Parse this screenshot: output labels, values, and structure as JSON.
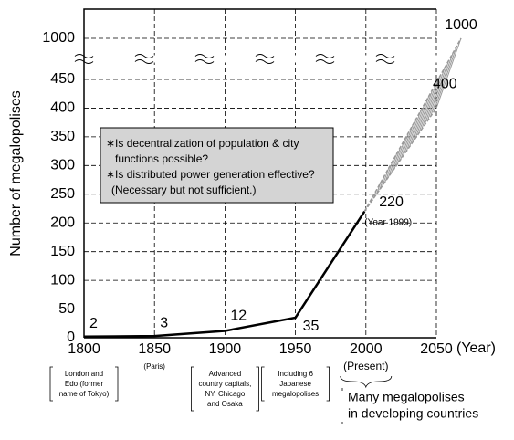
{
  "chart_data": {
    "type": "line",
    "y_label": "Number of megalopolises",
    "x_label": "(Year)",
    "x": [
      1800,
      1850,
      1900,
      1950,
      1999
    ],
    "values": [
      2,
      3,
      12,
      35,
      220
    ],
    "color": "#000000",
    "xlim": [
      1800,
      2050
    ],
    "xticks": [
      1800,
      1850,
      1900,
      1950,
      2000,
      2050
    ],
    "ylim": [
      0,
      1000
    ],
    "yticks": [
      0,
      50,
      100,
      150,
      200,
      250,
      300,
      350,
      400,
      450,
      1000
    ],
    "y_break": [
      450,
      1000
    ],
    "grid": true,
    "projection": {
      "x": 2050,
      "low": 400,
      "high": 1000,
      "color": "#999999"
    },
    "point_note": "(Year 1999)",
    "box_lines": [
      "∗Is decentralization of population & city",
      "functions possible?",
      "∗Is distributed power generation effective?",
      "(Necessary but not sufficient.)"
    ],
    "annotations": [
      [
        "London and",
        "Edo (former",
        "name of Tokyo)"
      ],
      [
        "(Paris)"
      ],
      [
        "Advanced",
        "country capitals,",
        "NY, Chicago",
        "and Osaka"
      ],
      [
        "Including 6",
        "Japanese",
        "megalopolises"
      ],
      [
        "(Present)"
      ],
      [
        "Many megalopolises",
        "in developing countries"
      ]
    ]
  }
}
